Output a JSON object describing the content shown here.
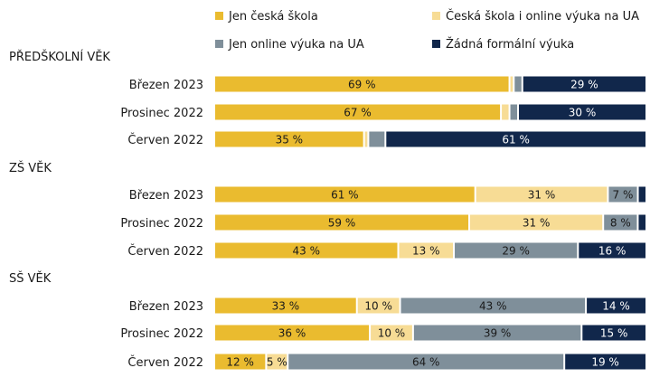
{
  "chart_data": {
    "type": "bar",
    "orientation": "horizontal",
    "stacked": true,
    "percent_scale": [
      0,
      100
    ],
    "legend_placement": "top",
    "legend": [
      {
        "name": "Jen česká škola",
        "color": "#EABB2F"
      },
      {
        "name": "Česká škola i online výuka na UA",
        "color": "#F7DC95"
      },
      {
        "name": "Jen online výuka na UA",
        "color": "#7F8F9A"
      },
      {
        "name": "Žádná formální výuka",
        "color": "#11274B"
      }
    ],
    "groups": [
      {
        "title": "PŘEDŠKOLNÍ VĚK",
        "rows": [
          {
            "label": "Březen 2023",
            "values": [
              69,
              1,
              2,
              29
            ],
            "labels": [
              "69 %",
              "",
              "",
              "29 %"
            ]
          },
          {
            "label": "Prosinec 2022",
            "values": [
              67,
              2,
              2,
              30
            ],
            "labels": [
              "67 %",
              "",
              "",
              "30 %"
            ]
          },
          {
            "label": "Červen 2022",
            "values": [
              35,
              1,
              4,
              61
            ],
            "labels": [
              "35 %",
              "",
              "",
              "61 %"
            ]
          }
        ]
      },
      {
        "title": "ZŠ VĚK",
        "rows": [
          {
            "label": "Březen 2023",
            "values": [
              61,
              31,
              7,
              2
            ],
            "labels": [
              "61 %",
              "31 %",
              "7 %",
              ""
            ]
          },
          {
            "label": "Prosinec 2022",
            "values": [
              59,
              31,
              8,
              2
            ],
            "labels": [
              "59 %",
              "31 %",
              "8 %",
              ""
            ]
          },
          {
            "label": "Červen 2022",
            "values": [
              43,
              13,
              29,
              16
            ],
            "labels": [
              "43 %",
              "13 %",
              "29 %",
              "16 %"
            ]
          }
        ]
      },
      {
        "title": "SŠ VĚK",
        "rows": [
          {
            "label": "Březen 2023",
            "values": [
              33,
              10,
              43,
              14
            ],
            "labels": [
              "33 %",
              "10 %",
              "43 %",
              "14 %"
            ]
          },
          {
            "label": "Prosinec 2022",
            "values": [
              36,
              10,
              39,
              15
            ],
            "labels": [
              "36 %",
              "10 %",
              "39 %",
              "15 %"
            ]
          },
          {
            "label": "Červen 2022",
            "values": [
              12,
              5,
              64,
              19
            ],
            "labels": [
              "12 %",
              "5 %",
              "64 %",
              "19 %"
            ]
          }
        ]
      }
    ]
  }
}
